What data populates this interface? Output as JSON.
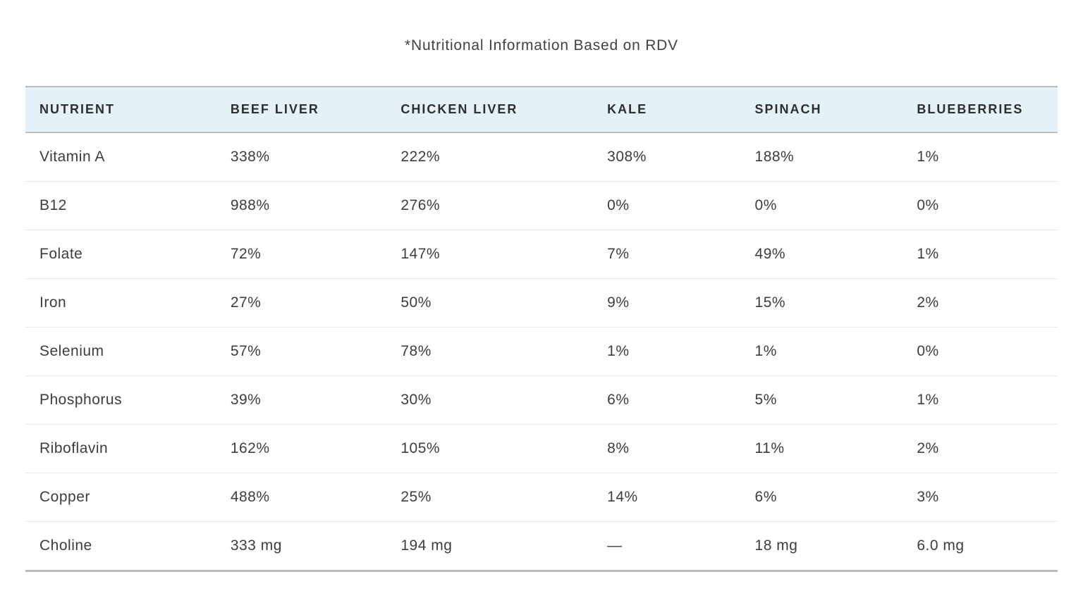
{
  "title": "*Nutritional Information Based on RDV",
  "chart_data": {
    "type": "table",
    "title": "*Nutritional Information Based on RDV",
    "columns": [
      "NUTRIENT",
      "BEEF LIVER",
      "CHICKEN LIVER",
      "KALE",
      "SPINACH",
      "BLUEBERRIES"
    ],
    "rows": [
      [
        "Vitamin A",
        "338%",
        "222%",
        "308%",
        "188%",
        "1%"
      ],
      [
        "B12",
        "988%",
        "276%",
        "0%",
        "0%",
        "0%"
      ],
      [
        "Folate",
        "72%",
        "147%",
        "7%",
        "49%",
        "1%"
      ],
      [
        "Iron",
        "27%",
        "50%",
        "9%",
        "15%",
        "2%"
      ],
      [
        "Selenium",
        "57%",
        "78%",
        "1%",
        "1%",
        "0%"
      ],
      [
        "Phosphorus",
        "39%",
        "30%",
        "6%",
        "5%",
        "1%"
      ],
      [
        "Riboflavin",
        "162%",
        "105%",
        "8%",
        "11%",
        "2%"
      ],
      [
        "Copper",
        "488%",
        "25%",
        "14%",
        "6%",
        "3%"
      ],
      [
        "Choline",
        "333 mg",
        "194 mg",
        "—",
        "18 mg",
        "6.0 mg"
      ]
    ],
    "layout": {
      "header_background": "#e4f2f8",
      "strong_border_color": "#b9bdbf",
      "row_divider_color": "#eaeaea",
      "text_color": "#3d3d3d"
    }
  }
}
